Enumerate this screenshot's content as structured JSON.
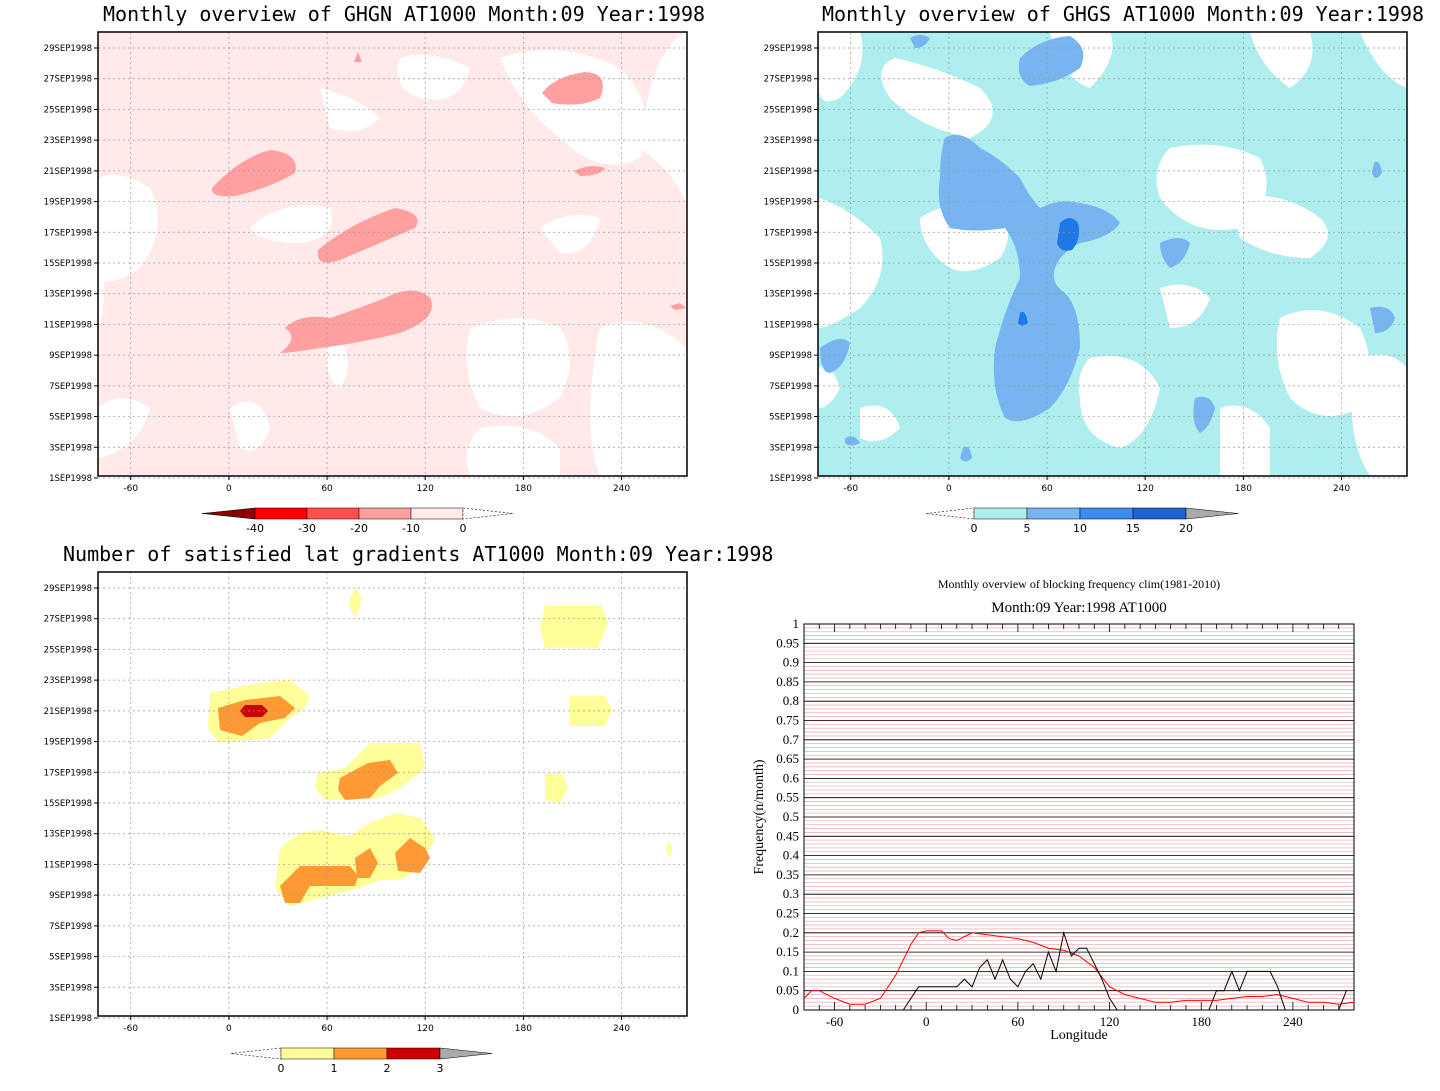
{
  "panels": [
    {
      "title": "Monthly overview of GHGN AT1000 Month:09 Year:1998",
      "palette": {
        "level1": "#ffe9e9",
        "level2": "#ffa0a0",
        "level3": "#ff5050",
        "level4": "#ff0000",
        "level5": "#8b0000"
      },
      "colorbar_ticks": [
        "-40",
        "-30",
        "-20",
        "-10",
        "0"
      ],
      "colorbar_colors": [
        "#8b0000",
        "#ff0000",
        "#ff5050",
        "#ff9f9f",
        "#ffe9e9"
      ]
    },
    {
      "title": "Monthly overview of GHGS AT1000 Month:09 Year:1998",
      "palette": {
        "level1": "#afeeee",
        "level2": "#78b4f0",
        "level3": "#3c8cf0"
      },
      "colorbar_ticks": [
        "0",
        "5",
        "10",
        "15",
        "20"
      ],
      "colorbar_colors": [
        "#afeeee",
        "#78b4f0",
        "#3c8cf0",
        "#1e64d2"
      ]
    },
    {
      "title": "Number of satisfied lat gradients AT1000 Month:09 Year:1998",
      "palette": {
        "level1": "#ffff99",
        "level2": "#ff9933",
        "level3": "#cc0000"
      },
      "colorbar_ticks": [
        "0",
        "1",
        "2",
        "3"
      ],
      "colorbar_colors": [
        "#ffff99",
        "#ff9933",
        "#cc0000"
      ]
    }
  ],
  "map_axes": {
    "x_ticks": [
      "-60",
      "0",
      "60",
      "120",
      "180",
      "240"
    ],
    "y_ticks": [
      "29SEP1998",
      "27SEP1998",
      "25SEP1998",
      "23SEP1998",
      "21SEP1998",
      "19SEP1998",
      "17SEP1998",
      "15SEP1998",
      "13SEP1998",
      "11SEP1998",
      "9SEP1998",
      "7SEP1998",
      "5SEP1998",
      "3SEP1998",
      "1SEP1998"
    ]
  },
  "line_chart": {
    "title": "Monthly overview of blocking frequency clim(1981-2010)",
    "subtitle": "Month:09 Year:1998  AT1000",
    "xlabel": "Longitude",
    "ylabel": "Frequency(n/month)",
    "x_ticks": [
      "-60",
      "0",
      "60",
      "120",
      "180",
      "240"
    ],
    "y_ticks": [
      "0",
      "0.05",
      "0.1",
      "0.15",
      "0.2",
      "0.25",
      "0.3",
      "0.35",
      "0.4",
      "0.45",
      "0.5",
      "0.55",
      "0.6",
      "0.65",
      "0.7",
      "0.75",
      "0.8",
      "0.85",
      "0.9",
      "0.95",
      "1"
    ],
    "colors": {
      "clim": "#ff0000",
      "year": "#000000",
      "hatch": "#e8b4b4"
    }
  },
  "chart_data": [
    {
      "type": "heatmap",
      "title": "Monthly overview of GHGN AT1000 Month:09 Year:1998",
      "xlim": [
        -80,
        280
      ],
      "x_ticks": [
        -60,
        0,
        60,
        120,
        180,
        240
      ],
      "ylabel_ticks": [
        "1SEP1998",
        "3SEP1998",
        "5SEP1998",
        "7SEP1998",
        "9SEP1998",
        "11SEP1998",
        "13SEP1998",
        "15SEP1998",
        "17SEP1998",
        "19SEP1998",
        "21SEP1998",
        "23SEP1998",
        "25SEP1998",
        "27SEP1998",
        "29SEP1998"
      ],
      "levels": [
        -40,
        -30,
        -20,
        -10,
        0
      ],
      "background_level": "-10..0",
      "features": [
        {
          "label": "-20..-10",
          "lon_center": 15,
          "day": 21,
          "lon_halfwidth": 27,
          "day_halfwidth": 0.8
        },
        {
          "label": "-20..-10",
          "lon_center": 87,
          "day": 17.2,
          "lon_halfwidth": 34,
          "day_halfwidth": 0.9
        },
        {
          "label": "-20..-10",
          "lon_center": 83,
          "day": 11.2,
          "lon_halfwidth": 46,
          "day_halfwidth": 1.1
        },
        {
          "label": "-20..-10",
          "lon_center": 216,
          "day": 26.9,
          "lon_halfwidth": 21,
          "day_halfwidth": 0.8
        },
        {
          "label": "-20..-10",
          "lon_center": 220,
          "day": 21,
          "lon_halfwidth": 9,
          "day_halfwidth": 0.3
        }
      ]
    },
    {
      "type": "heatmap",
      "title": "Monthly overview of GHGS AT1000 Month:09 Year:1998",
      "xlim": [
        -80,
        280
      ],
      "x_ticks": [
        -60,
        0,
        60,
        120,
        180,
        240
      ],
      "levels": [
        0,
        5,
        10,
        15,
        20
      ],
      "features": [
        {
          "label": "5..10",
          "lon_center": 45,
          "day": 18.5,
          "lon_halfwidth": 50,
          "day_halfwidth": 3
        },
        {
          "label": "5..10",
          "lon_center": 50,
          "day": 9,
          "lon_halfwidth": 22,
          "day_halfwidth": 3.5
        },
        {
          "label": "5..10",
          "lon_center": 62,
          "day": 28.4,
          "lon_halfwidth": 26,
          "day_halfwidth": 1.2
        },
        {
          "label": "10..15",
          "lon_center": 72,
          "day": 17.2,
          "lon_halfwidth": 7,
          "day_halfwidth": 0.8
        }
      ]
    },
    {
      "type": "heatmap",
      "title": "Number of satisfied lat gradients AT1000 Month:09 Year:1998",
      "xlim": [
        -80,
        280
      ],
      "x_ticks": [
        -60,
        0,
        60,
        120,
        180,
        240
      ],
      "levels": [
        0,
        1,
        2,
        3
      ],
      "features": [
        {
          "label": "1",
          "lon_center": 18,
          "day": 20.8,
          "lon_halfwidth": 28,
          "day_halfwidth": 1.2
        },
        {
          "label": "2",
          "lon_center": 15,
          "day": 20.7,
          "lon_halfwidth": 17,
          "day_halfwidth": 0.9
        },
        {
          "label": "3",
          "lon_center": 15,
          "day": 21,
          "lon_halfwidth": 8,
          "day_halfwidth": 0.3
        },
        {
          "label": "1",
          "lon_center": 92,
          "day": 17.3,
          "lon_halfwidth": 32,
          "day_halfwidth": 1.6
        },
        {
          "label": "2",
          "lon_center": 90,
          "day": 16.7,
          "lon_halfwidth": 20,
          "day_halfwidth": 1.1
        },
        {
          "label": "1",
          "lon_center": 85,
          "day": 11.2,
          "lon_halfwidth": 50,
          "day_halfwidth": 1.8
        },
        {
          "label": "2",
          "lon_center": 60,
          "day": 10.5,
          "lon_halfwidth": 30,
          "day_halfwidth": 0.7
        },
        {
          "label": "2",
          "lon_center": 110,
          "day": 11.5,
          "lon_halfwidth": 9,
          "day_halfwidth": 1
        },
        {
          "label": "1",
          "lon_center": 218,
          "day": 27,
          "lon_halfwidth": 23,
          "day_halfwidth": 1.5
        },
        {
          "label": "1",
          "lon_center": 222,
          "day": 21,
          "lon_halfwidth": 13,
          "day_halfwidth": 1
        }
      ]
    },
    {
      "type": "line",
      "title": "Monthly overview of blocking frequency clim(1981-2010)",
      "subtitle": "Month:09 Year:1998  AT1000",
      "xlabel": "Longitude",
      "ylabel": "Frequency(n/month)",
      "xlim": [
        -80,
        280
      ],
      "ylim": [
        0,
        1
      ],
      "series": [
        {
          "x": [
            -80,
            -75,
            -70,
            -60,
            -50,
            -40,
            -30,
            -20,
            -10,
            -5,
            0,
            10,
            15,
            20,
            30,
            40,
            50,
            60,
            70,
            80,
            90,
            100,
            110,
            120,
            130,
            140,
            150,
            160,
            170,
            180,
            190,
            200,
            210,
            220,
            230,
            240,
            250,
            260,
            270,
            280
          ],
          "y": [
            0.03,
            0.05,
            0.05,
            0.03,
            0.015,
            0.015,
            0.03,
            0.09,
            0.17,
            0.2,
            0.205,
            0.205,
            0.185,
            0.18,
            0.2,
            0.195,
            0.19,
            0.185,
            0.175,
            0.16,
            0.155,
            0.14,
            0.11,
            0.06,
            0.04,
            0.03,
            0.02,
            0.02,
            0.025,
            0.025,
            0.025,
            0.03,
            0.035,
            0.035,
            0.04,
            0.03,
            0.02,
            0.02,
            0.015,
            0.02
          ]
        },
        {
          "x": [
            -15,
            -10,
            -5,
            0,
            10,
            20,
            25,
            30,
            35,
            40,
            45,
            50,
            55,
            60,
            65,
            70,
            75,
            80,
            85,
            90,
            95,
            100,
            105,
            110,
            115,
            120,
            125,
            185,
            190,
            195,
            200,
            205,
            210,
            215,
            220,
            225,
            230,
            235,
            270,
            275
          ],
          "y": [
            0,
            0.03,
            0.06,
            0.06,
            0.06,
            0.06,
            0.08,
            0.06,
            0.11,
            0.13,
            0.08,
            0.13,
            0.08,
            0.06,
            0.1,
            0.12,
            0.08,
            0.15,
            0.1,
            0.2,
            0.14,
            0.16,
            0.16,
            0.12,
            0.08,
            0.03,
            0,
            0,
            0.05,
            0.05,
            0.1,
            0.05,
            0.1,
            0.1,
            0.1,
            0.1,
            0.06,
            0,
            0,
            0.05
          ]
        }
      ]
    }
  ]
}
